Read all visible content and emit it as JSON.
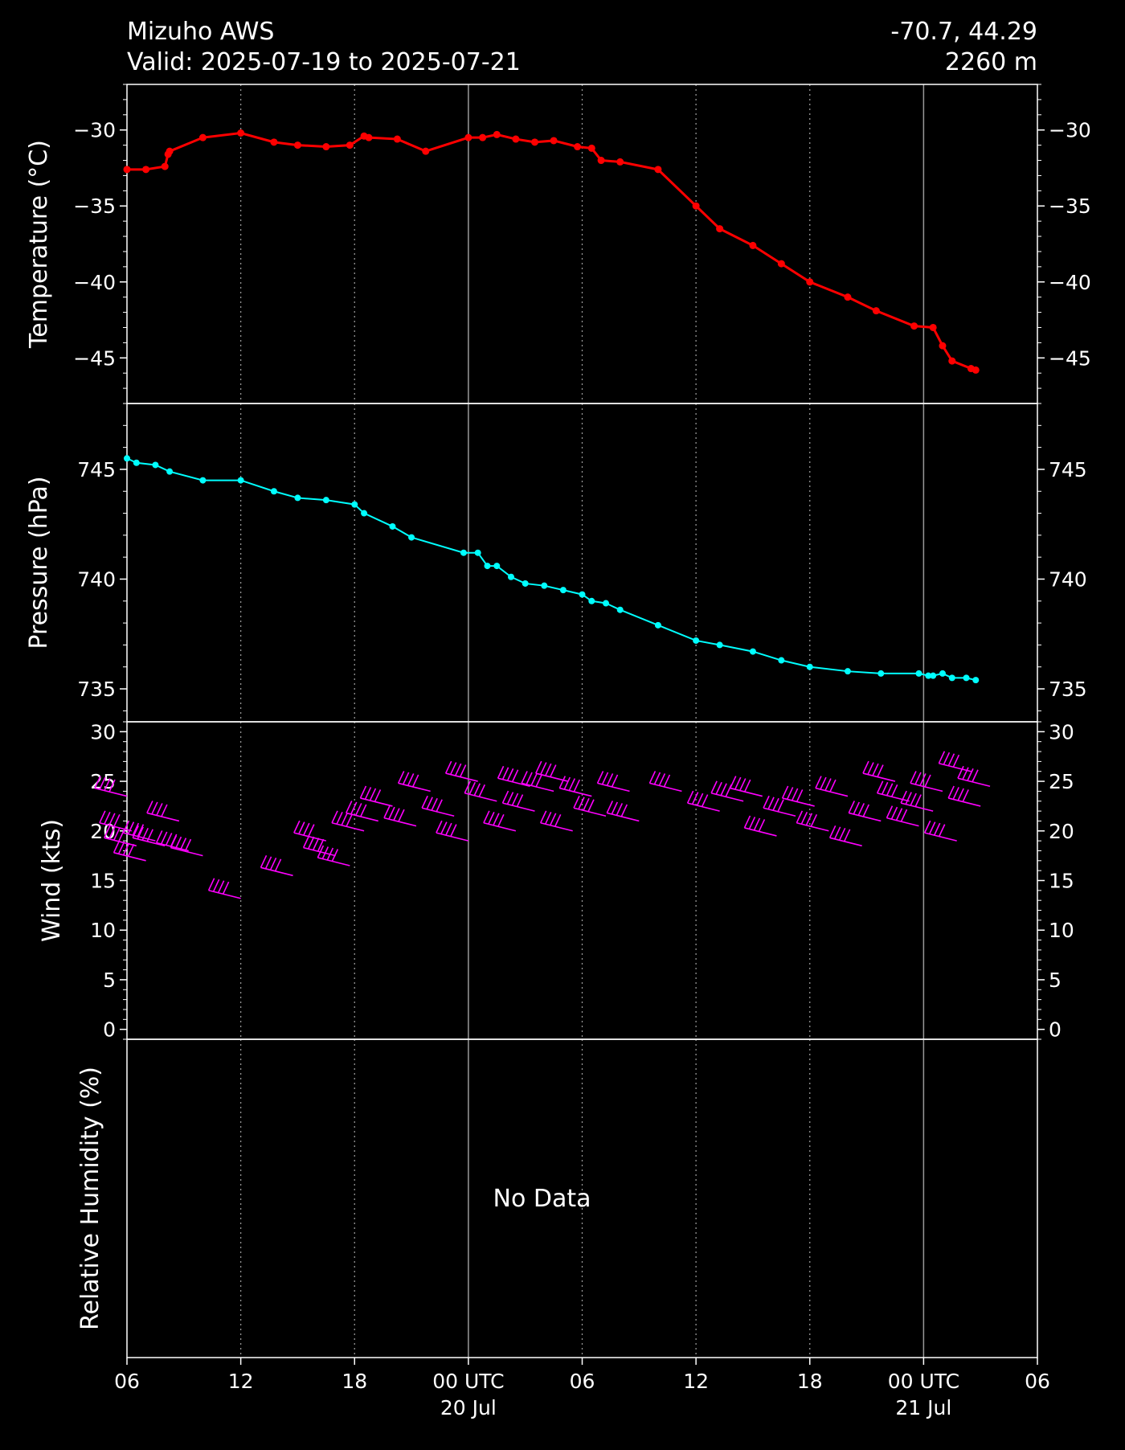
{
  "header": {
    "station": "Mizuho AWS",
    "valid": "Valid: 2025-07-19 to 2025-07-21",
    "coords": "-70.7, 44.29",
    "elevation": "2260 m"
  },
  "colors": {
    "background": "#000000",
    "foreground": "#ffffff",
    "temperature": "#ff0000",
    "pressure": "#00ffff",
    "wind": "#ff00ff"
  },
  "x_axis": {
    "range": [
      "2025-07-19 06:00",
      "2025-07-21 06:00"
    ],
    "ticks": [
      {
        "t": "2025-07-19 06:00",
        "label": "06",
        "sub": "",
        "major": false
      },
      {
        "t": "2025-07-19 12:00",
        "label": "12",
        "sub": "",
        "major": false
      },
      {
        "t": "2025-07-19 18:00",
        "label": "18",
        "sub": "",
        "major": false
      },
      {
        "t": "2025-07-20 00:00",
        "label": "00 UTC",
        "sub": "20 Jul",
        "major": true
      },
      {
        "t": "2025-07-20 06:00",
        "label": "06",
        "sub": "",
        "major": false
      },
      {
        "t": "2025-07-20 12:00",
        "label": "12",
        "sub": "",
        "major": false
      },
      {
        "t": "2025-07-20 18:00",
        "label": "18",
        "sub": "",
        "major": false
      },
      {
        "t": "2025-07-21 00:00",
        "label": "00 UTC",
        "sub": "21 Jul",
        "major": true
      },
      {
        "t": "2025-07-21 06:00",
        "label": "06",
        "sub": "",
        "major": false
      }
    ]
  },
  "chart_data": [
    {
      "type": "line",
      "ylabel": "Temperature ($^\\circ$C)",
      "ylim": [
        -48.0,
        -27.0
      ],
      "yticks": [
        -30,
        -35,
        -40,
        -45
      ],
      "ytick_labels": [
        "−30",
        "−35",
        "−40",
        "−45"
      ],
      "series": [
        {
          "x": [
            "2025-07-19 06:00",
            "2025-07-19 07:00",
            "2025-07-19 08:00",
            "2025-07-19 08:10",
            "2025-07-19 08:15",
            "2025-07-19 10:00",
            "2025-07-19 12:00",
            "2025-07-19 13:45",
            "2025-07-19 15:00",
            "2025-07-19 16:30",
            "2025-07-19 17:45",
            "2025-07-19 18:30",
            "2025-07-19 18:45",
            "2025-07-19 20:15",
            "2025-07-19 21:45",
            "2025-07-20 00:00",
            "2025-07-20 00:45",
            "2025-07-20 01:30",
            "2025-07-20 02:30",
            "2025-07-20 03:30",
            "2025-07-20 04:30",
            "2025-07-20 05:45",
            "2025-07-20 06:30",
            "2025-07-20 07:00",
            "2025-07-20 08:00",
            "2025-07-20 10:00",
            "2025-07-20 12:00",
            "2025-07-20 13:15",
            "2025-07-20 15:00",
            "2025-07-20 16:30",
            "2025-07-20 18:00",
            "2025-07-20 20:00",
            "2025-07-20 21:30",
            "2025-07-20 23:30",
            "2025-07-21 00:30",
            "2025-07-21 01:00",
            "2025-07-21 01:30",
            "2025-07-21 02:30",
            "2025-07-21 02:45"
          ],
          "y": [
            -32.6,
            -32.6,
            -32.4,
            -31.6,
            -31.4,
            -30.5,
            -30.2,
            -30.8,
            -31.0,
            -31.1,
            -31.0,
            -30.4,
            -30.5,
            -30.6,
            -31.4,
            -30.5,
            -30.5,
            -30.3,
            -30.6,
            -30.8,
            -30.7,
            -31.1,
            -31.2,
            -32.0,
            -32.1,
            -32.6,
            -35.0,
            -36.5,
            -37.6,
            -38.8,
            -40.0,
            -41.0,
            -41.9,
            -42.9,
            -43.0,
            -44.2,
            -45.2,
            -45.7,
            -45.8
          ]
        }
      ]
    },
    {
      "type": "line",
      "ylabel": "Pressure (hPa)",
      "ylim": [
        733.5,
        748.0
      ],
      "yticks": [
        745,
        740,
        735
      ],
      "ytick_labels": [
        "745",
        "740",
        "735"
      ],
      "series": [
        {
          "x": [
            "2025-07-19 06:00",
            "2025-07-19 06:30",
            "2025-07-19 07:30",
            "2025-07-19 08:15",
            "2025-07-19 10:00",
            "2025-07-19 12:00",
            "2025-07-19 13:45",
            "2025-07-19 15:00",
            "2025-07-19 16:30",
            "2025-07-19 18:00",
            "2025-07-19 18:30",
            "2025-07-19 20:00",
            "2025-07-19 21:00",
            "2025-07-19 23:45",
            "2025-07-20 00:30",
            "2025-07-20 01:00",
            "2025-07-20 01:30",
            "2025-07-20 02:15",
            "2025-07-20 03:00",
            "2025-07-20 04:00",
            "2025-07-20 05:00",
            "2025-07-20 06:00",
            "2025-07-20 06:30",
            "2025-07-20 07:15",
            "2025-07-20 08:00",
            "2025-07-20 10:00",
            "2025-07-20 12:00",
            "2025-07-20 13:15",
            "2025-07-20 15:00",
            "2025-07-20 16:30",
            "2025-07-20 18:00",
            "2025-07-20 20:00",
            "2025-07-20 21:45",
            "2025-07-20 23:45",
            "2025-07-21 00:15",
            "2025-07-21 00:30",
            "2025-07-21 01:00",
            "2025-07-21 01:30",
            "2025-07-21 02:15",
            "2025-07-21 02:45"
          ],
          "y": [
            745.5,
            745.3,
            745.2,
            744.9,
            744.5,
            744.5,
            744.0,
            743.7,
            743.6,
            743.4,
            743.0,
            742.4,
            741.9,
            741.2,
            741.2,
            740.6,
            740.6,
            740.1,
            739.8,
            739.7,
            739.5,
            739.3,
            739.0,
            738.9,
            738.6,
            737.9,
            737.2,
            737.0,
            736.7,
            736.3,
            736.0,
            735.8,
            735.7,
            735.7,
            735.6,
            735.6,
            735.7,
            735.5,
            735.5,
            735.4
          ]
        }
      ]
    },
    {
      "type": "scatter",
      "ylabel": "Wind (kts)",
      "ylim": [
        -1.0,
        31.0
      ],
      "yticks": [
        0,
        5,
        10,
        15,
        20,
        25,
        30
      ],
      "ytick_labels": [
        "0",
        "5",
        "10",
        "15",
        "20",
        "25",
        "30"
      ],
      "series": [
        {
          "name": "wind barbs",
          "x": [
            "2025-07-19 06:00",
            "2025-07-19 06:15",
            "2025-07-19 06:30",
            "2025-07-19 07:00",
            "2025-07-19 07:30",
            "2025-07-19 08:00",
            "2025-07-19 08:45",
            "2025-07-19 09:15",
            "2025-07-19 10:00",
            "2025-07-19 12:00",
            "2025-07-19 14:45",
            "2025-07-19 16:30",
            "2025-07-19 17:00",
            "2025-07-19 17:45",
            "2025-07-19 18:30",
            "2025-07-19 19:15",
            "2025-07-19 20:00",
            "2025-07-19 21:15",
            "2025-07-19 22:00",
            "2025-07-19 23:15",
            "2025-07-20 00:00",
            "2025-07-20 00:30",
            "2025-07-20 01:30",
            "2025-07-20 02:30",
            "2025-07-20 03:15",
            "2025-07-20 03:30",
            "2025-07-20 04:30",
            "2025-07-20 05:15",
            "2025-07-20 05:30",
            "2025-07-20 06:30",
            "2025-07-20 07:15",
            "2025-07-20 08:30",
            "2025-07-20 09:00",
            "2025-07-20 11:15",
            "2025-07-20 13:15",
            "2025-07-20 14:30",
            "2025-07-20 15:30",
            "2025-07-20 16:15",
            "2025-07-20 17:15",
            "2025-07-20 18:15",
            "2025-07-20 19:00",
            "2025-07-20 20:00",
            "2025-07-20 20:45",
            "2025-07-20 21:45",
            "2025-07-20 22:30",
            "2025-07-20 23:15",
            "2025-07-20 23:45",
            "2025-07-21 00:30",
            "2025-07-21 01:00",
            "2025-07-21 01:45",
            "2025-07-21 02:30",
            "2025-07-21 03:00",
            "2025-07-21 03:30"
          ],
          "y": [
            23.5,
            20.0,
            18.5,
            17.0,
            19.0,
            18.5,
            21.0,
            18.0,
            17.5,
            13.2,
            15.5,
            19.0,
            17.5,
            16.5,
            20.0,
            21.0,
            22.5,
            20.5,
            24.0,
            21.5,
            19.0,
            25.0,
            23.0,
            20.0,
            24.5,
            22.0,
            24.0,
            25.0,
            20.0,
            23.5,
            21.5,
            24.0,
            21.0,
            24.0,
            22.0,
            23.0,
            23.5,
            19.5,
            21.5,
            22.5,
            20.0,
            23.5,
            18.5,
            21.0,
            25.0,
            23.0,
            20.5,
            22.0,
            24.0,
            19.0,
            26.0,
            22.5,
            24.5
          ]
        }
      ]
    },
    {
      "type": "line",
      "ylabel": "Relative Humidity (%)",
      "annotation": "No Data",
      "series": []
    }
  ]
}
